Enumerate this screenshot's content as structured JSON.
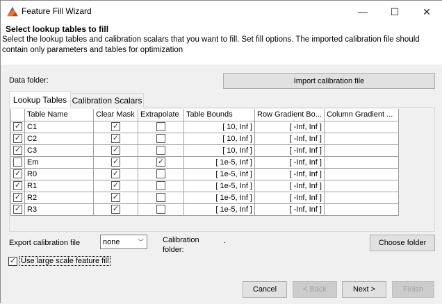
{
  "window": {
    "title": "Feature Fill Wizard",
    "minimize": "—",
    "maximize": "☐",
    "close": "✕",
    "icon": "matlab-icon"
  },
  "header": {
    "title": "Select lookup tables to fill",
    "description": "Select the lookup tables and calibration scalars that you want to fill. Set fill options. The imported calibration file should contain only parameters and tables for optimization"
  },
  "data_folder_label": "Data folder:",
  "import_button": "Import calibration file",
  "tabs": [
    {
      "label": "Lookup Tables",
      "active": true
    },
    {
      "label": "Calibration Scalars",
      "active": false
    }
  ],
  "table": {
    "columns": [
      "",
      "Table Name",
      "Clear Mask",
      "Extrapolate",
      "Table Bounds",
      "Row Gradient Bo...",
      "Column Gradient ..."
    ],
    "rows": [
      {
        "selected": true,
        "name": "C1",
        "clear_mask": true,
        "extrapolate": false,
        "bounds": "[ 10, Inf ]",
        "row_grad": "[ -Inf, Inf ]",
        "col_grad": ""
      },
      {
        "selected": true,
        "name": "C2",
        "clear_mask": true,
        "extrapolate": false,
        "bounds": "[ 10, Inf ]",
        "row_grad": "[ -Inf, Inf ]",
        "col_grad": ""
      },
      {
        "selected": true,
        "name": "C3",
        "clear_mask": true,
        "extrapolate": false,
        "bounds": "[ 10, Inf ]",
        "row_grad": "[ -Inf, Inf ]",
        "col_grad": ""
      },
      {
        "selected": false,
        "name": "Em",
        "clear_mask": true,
        "extrapolate": true,
        "bounds": "[ 1e-5, Inf ]",
        "row_grad": "[ -Inf, Inf ]",
        "col_grad": ""
      },
      {
        "selected": true,
        "name": "R0",
        "clear_mask": true,
        "extrapolate": false,
        "bounds": "[ 1e-5, Inf ]",
        "row_grad": "[ -Inf, Inf ]",
        "col_grad": ""
      },
      {
        "selected": true,
        "name": "R1",
        "clear_mask": true,
        "extrapolate": false,
        "bounds": "[ 1e-5, Inf ]",
        "row_grad": "[ -Inf, Inf ]",
        "col_grad": ""
      },
      {
        "selected": true,
        "name": "R2",
        "clear_mask": true,
        "extrapolate": false,
        "bounds": "[ 1e-5, Inf ]",
        "row_grad": "[ -Inf, Inf ]",
        "col_grad": ""
      },
      {
        "selected": true,
        "name": "R3",
        "clear_mask": true,
        "extrapolate": false,
        "bounds": "[ 1e-5, Inf ]",
        "row_grad": "[ -Inf, Inf ]",
        "col_grad": ""
      }
    ]
  },
  "export": {
    "label": "Export calibration file type:",
    "value": "none"
  },
  "calibration_folder": {
    "label": "Calibration folder:",
    "value": "."
  },
  "choose_folder_button": "Choose folder",
  "large_scale": {
    "label": "Use large scale feature fill",
    "checked": true
  },
  "footer": {
    "cancel": "Cancel",
    "back": "< Back",
    "next": "Next >",
    "finish": "Finish"
  }
}
